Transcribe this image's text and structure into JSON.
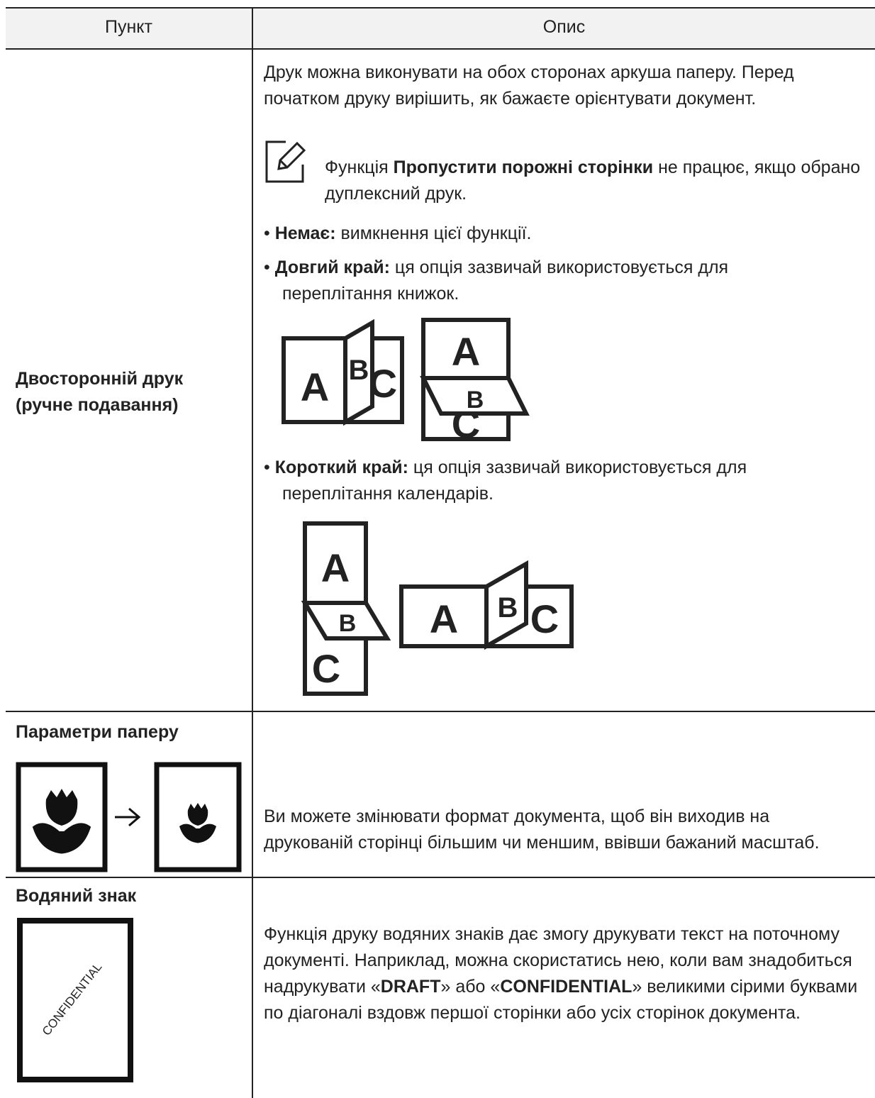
{
  "table": {
    "header": [
      "Пункт",
      "Опис"
    ],
    "rows": [
      {
        "item": [
          "Двосторонній друк",
          "(ручне подавання)"
        ],
        "intro": "Друк можна виконувати на обох сторонах аркуша паперу. Перед початком друку вирішить, як бажаєте орієнтувати документ.",
        "note": {
          "before": "Функція ",
          "bold": "Пропустити порожні сторінки",
          "after": " не працює, якщо обрано дуплексний друк."
        },
        "bullets": [
          {
            "term": "Немає:",
            "text": " вимкнення цієї функції."
          },
          {
            "term": "Довгий край:",
            "text": " ця опція зазвичай використовується для переплітання книжок."
          },
          {
            "term": "Короткий край:",
            "text": " ця опція зазвичай використовується для переплітання календарів."
          }
        ],
        "illustration_letters": [
          "A",
          "B",
          "C"
        ]
      },
      {
        "item": [
          "Параметри паперу"
        ],
        "description": "Ви можете змінювати формат документа, щоб він виходив на друкованій сторінці більшим чи меншим, ввівши бажаний масштаб."
      },
      {
        "item": [
          "Водяний знак"
        ],
        "watermark_sample": "CONFIDENTIAL",
        "description": [
          "Функція друку водяних знаків дає змогу друкувати текст на поточному документі. Наприклад, можна скористатись нею, коли вам знадобиться надрукувати «",
          "DRAFT",
          "» або «",
          "CONFIDENTIAL",
          "» великими сірими буквами по діагоналі вздовж першої сторінки або усіх сторінок документа."
        ]
      }
    ]
  }
}
